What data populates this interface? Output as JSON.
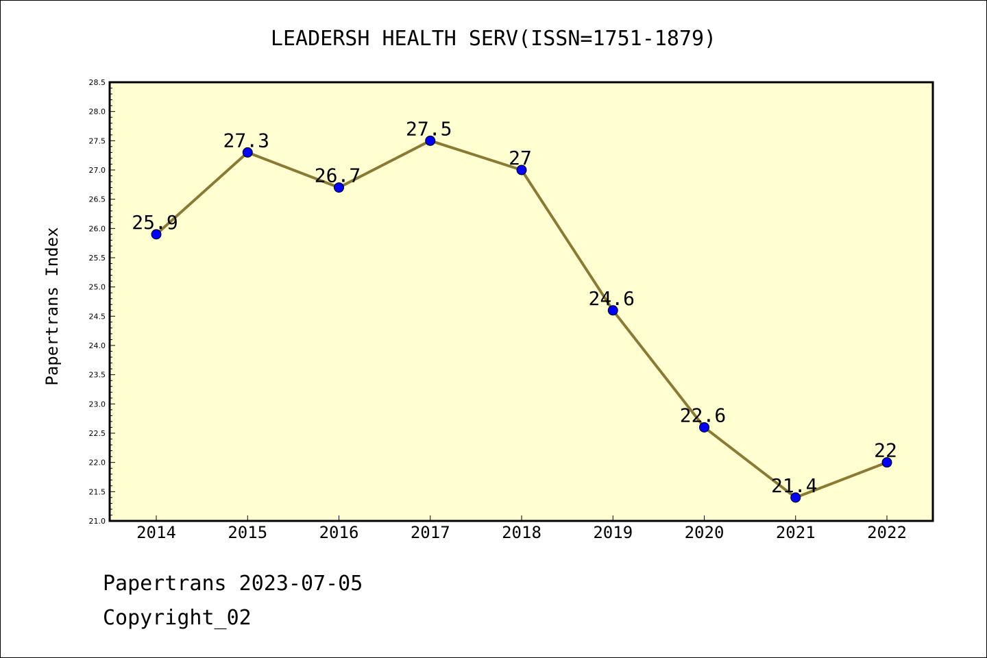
{
  "chart_data": {
    "type": "line",
    "title": "LEADERSH HEALTH SERV(ISSN=1751-1879)",
    "xlabel": "",
    "ylabel": "Papertrans Index",
    "categories": [
      "2014",
      "2015",
      "2016",
      "2017",
      "2018",
      "2019",
      "2020",
      "2021",
      "2022"
    ],
    "series": [
      {
        "values": [
          25.9,
          27.3,
          26.7,
          27.5,
          27.0,
          24.6,
          22.6,
          21.4,
          22.0
        ],
        "data_labels": [
          "25.9",
          "27.3",
          "26.7",
          "27.5",
          "27",
          "24.6",
          "22.6",
          "21.4",
          "22"
        ]
      }
    ],
    "ylim": [
      21.0,
      28.5
    ],
    "y_ticks": [
      "21.0",
      "21.5",
      "22.0",
      "22.5",
      "23.0",
      "23.5",
      "24.0",
      "24.5",
      "25.0",
      "25.5",
      "26.0",
      "26.5",
      "27.0",
      "27.5",
      "28.0",
      "28.5"
    ],
    "grid": false,
    "legend": "none",
    "colors": {
      "plot_background": "#ffffd2",
      "line": "#8b7a33",
      "marker": "#0000ff"
    }
  },
  "footer": {
    "date_line": "Papertrans 2023-07-05",
    "copyright_line": "Copyright_02"
  }
}
